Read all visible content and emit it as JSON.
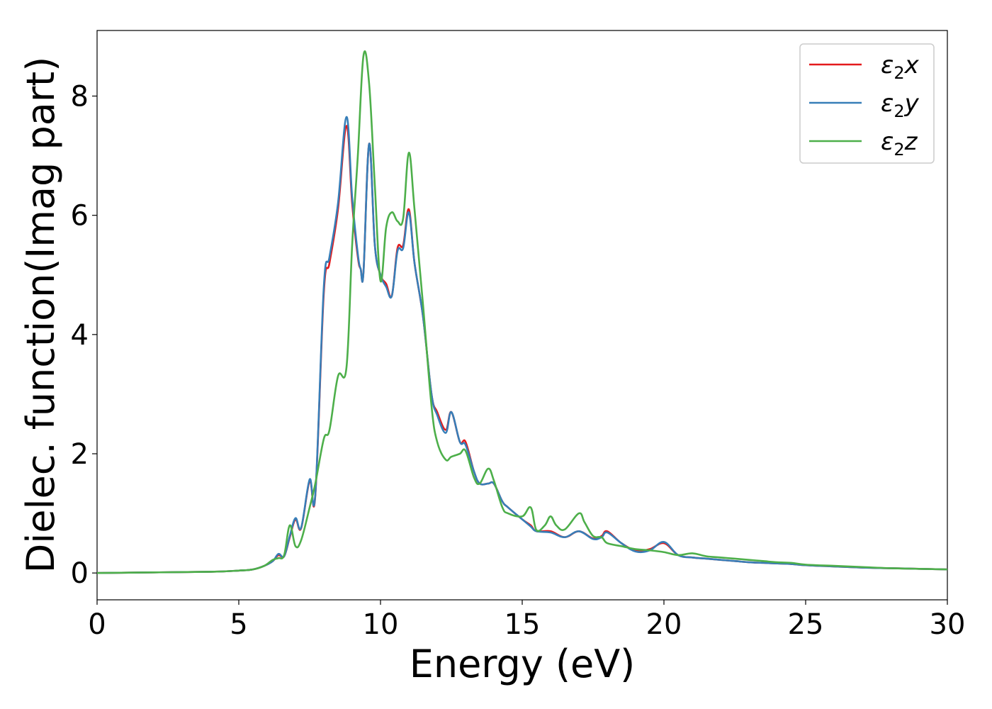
{
  "chart_data": {
    "type": "line",
    "title": "",
    "xlabel": "Energy (eV)",
    "ylabel": "Dielec. function(Imag part)",
    "xlim": [
      0,
      30
    ],
    "ylim": [
      -0.45,
      9.1
    ],
    "xticks": [
      0,
      5,
      10,
      15,
      20,
      25,
      30
    ],
    "yticks": [
      0,
      2,
      4,
      6,
      8
    ],
    "grid": false,
    "legend_position": "top-right",
    "series": [
      {
        "name": "ε2x",
        "legend": {
          "base": "ε",
          "sub": "2",
          "suffix": "x"
        },
        "color": "#e41a1c",
        "x": [
          0,
          2,
          4,
          5,
          5.5,
          5.9,
          6.2,
          6.4,
          6.6,
          6.8,
          7.0,
          7.2,
          7.5,
          7.7,
          8.0,
          8.2,
          8.5,
          8.8,
          9.0,
          9.2,
          9.3,
          9.4,
          9.6,
          9.8,
          10.0,
          10.2,
          10.4,
          10.6,
          10.8,
          11.0,
          11.2,
          11.5,
          11.8,
          12.0,
          12.3,
          12.5,
          12.8,
          13.0,
          13.3,
          13.5,
          13.8,
          14.0,
          14.3,
          14.5,
          15.0,
          15.3,
          15.5,
          16.0,
          16.5,
          17.0,
          17.5,
          17.8,
          18.0,
          18.5,
          19.0,
          19.5,
          20.0,
          20.5,
          21.0,
          21.5,
          22.0,
          22.5,
          23.0,
          23.5,
          24.0,
          24.5,
          25.0,
          26.0,
          27.0,
          28.0,
          29.0,
          30.0
        ],
        "y": [
          0,
          0.01,
          0.02,
          0.04,
          0.06,
          0.12,
          0.2,
          0.3,
          0.28,
          0.6,
          0.9,
          0.75,
          1.55,
          1.3,
          4.7,
          5.2,
          6.1,
          7.5,
          6.2,
          5.3,
          5.1,
          5.05,
          7.2,
          5.5,
          5.0,
          4.85,
          4.65,
          5.45,
          5.5,
          6.1,
          5.2,
          4.3,
          3.0,
          2.7,
          2.4,
          2.7,
          2.2,
          2.2,
          1.7,
          1.5,
          1.5,
          1.5,
          1.2,
          1.1,
          0.9,
          0.8,
          0.7,
          0.7,
          0.6,
          0.7,
          0.58,
          0.62,
          0.7,
          0.5,
          0.38,
          0.4,
          0.5,
          0.3,
          0.26,
          0.24,
          0.22,
          0.2,
          0.18,
          0.17,
          0.16,
          0.15,
          0.13,
          0.11,
          0.09,
          0.08,
          0.07,
          0.06
        ]
      },
      {
        "name": "ε2y",
        "legend": {
          "base": "ε",
          "sub": "2",
          "suffix": "y"
        },
        "color": "#377eb8",
        "x": [
          0,
          2,
          4,
          5,
          5.5,
          5.9,
          6.2,
          6.4,
          6.6,
          6.8,
          7.0,
          7.2,
          7.5,
          7.7,
          8.0,
          8.2,
          8.5,
          8.8,
          9.0,
          9.2,
          9.3,
          9.4,
          9.6,
          9.8,
          10.0,
          10.2,
          10.4,
          10.6,
          10.8,
          11.0,
          11.2,
          11.5,
          11.8,
          12.0,
          12.3,
          12.5,
          12.8,
          13.0,
          13.3,
          13.5,
          13.8,
          14.0,
          14.3,
          14.5,
          15.0,
          15.3,
          15.5,
          16.0,
          16.5,
          17.0,
          17.5,
          17.8,
          18.0,
          18.5,
          19.0,
          19.5,
          20.0,
          20.5,
          21.0,
          21.5,
          22.0,
          22.5,
          23.0,
          23.5,
          24.0,
          24.5,
          25.0,
          26.0,
          27.0,
          28.0,
          29.0,
          30.0
        ],
        "y": [
          0,
          0.01,
          0.02,
          0.04,
          0.06,
          0.12,
          0.2,
          0.32,
          0.28,
          0.62,
          0.92,
          0.76,
          1.57,
          1.32,
          4.8,
          5.3,
          6.2,
          7.65,
          6.3,
          5.35,
          5.1,
          5.05,
          7.2,
          5.5,
          5.0,
          4.8,
          4.65,
          5.4,
          5.45,
          6.05,
          5.2,
          4.3,
          3.0,
          2.65,
          2.35,
          2.7,
          2.2,
          2.15,
          1.7,
          1.5,
          1.5,
          1.5,
          1.2,
          1.1,
          0.9,
          0.78,
          0.7,
          0.68,
          0.6,
          0.7,
          0.57,
          0.6,
          0.68,
          0.5,
          0.36,
          0.38,
          0.52,
          0.3,
          0.26,
          0.24,
          0.22,
          0.2,
          0.18,
          0.17,
          0.16,
          0.15,
          0.13,
          0.11,
          0.09,
          0.08,
          0.07,
          0.06
        ]
      },
      {
        "name": "ε2z",
        "legend": {
          "base": "ε",
          "sub": "2",
          "suffix": "z"
        },
        "color": "#4daf4a",
        "x": [
          0,
          2,
          4,
          5,
          5.5,
          5.9,
          6.2,
          6.4,
          6.6,
          6.8,
          7.0,
          7.2,
          7.5,
          7.7,
          8.0,
          8.2,
          8.5,
          8.8,
          9.0,
          9.2,
          9.4,
          9.6,
          9.8,
          10.0,
          10.2,
          10.4,
          10.6,
          10.8,
          11.0,
          11.2,
          11.5,
          11.8,
          12.0,
          12.3,
          12.5,
          12.8,
          13.0,
          13.3,
          13.5,
          13.8,
          14.0,
          14.3,
          14.5,
          15.0,
          15.3,
          15.5,
          15.8,
          16.0,
          16.2,
          16.5,
          17.0,
          17.2,
          17.5,
          17.8,
          18.0,
          18.5,
          19.0,
          19.5,
          20.0,
          20.5,
          21.0,
          21.5,
          22.0,
          22.5,
          23.0,
          23.5,
          24.0,
          24.5,
          25.0,
          26.0,
          27.0,
          28.0,
          29.0,
          30.0
        ],
        "y": [
          0,
          0.01,
          0.02,
          0.04,
          0.06,
          0.12,
          0.22,
          0.25,
          0.3,
          0.8,
          0.45,
          0.55,
          1.1,
          1.5,
          2.25,
          2.4,
          3.3,
          3.45,
          5.5,
          7.0,
          8.68,
          8.2,
          6.5,
          4.9,
          5.8,
          6.05,
          5.9,
          5.95,
          7.05,
          6.1,
          4.5,
          2.8,
          2.2,
          1.9,
          1.95,
          2.0,
          2.05,
          1.6,
          1.5,
          1.75,
          1.55,
          1.1,
          1.0,
          0.95,
          1.1,
          0.72,
          0.8,
          0.95,
          0.8,
          0.73,
          1.0,
          0.85,
          0.62,
          0.6,
          0.5,
          0.45,
          0.4,
          0.38,
          0.35,
          0.3,
          0.33,
          0.28,
          0.26,
          0.24,
          0.22,
          0.2,
          0.18,
          0.17,
          0.14,
          0.12,
          0.1,
          0.08,
          0.07,
          0.06
        ]
      }
    ]
  }
}
